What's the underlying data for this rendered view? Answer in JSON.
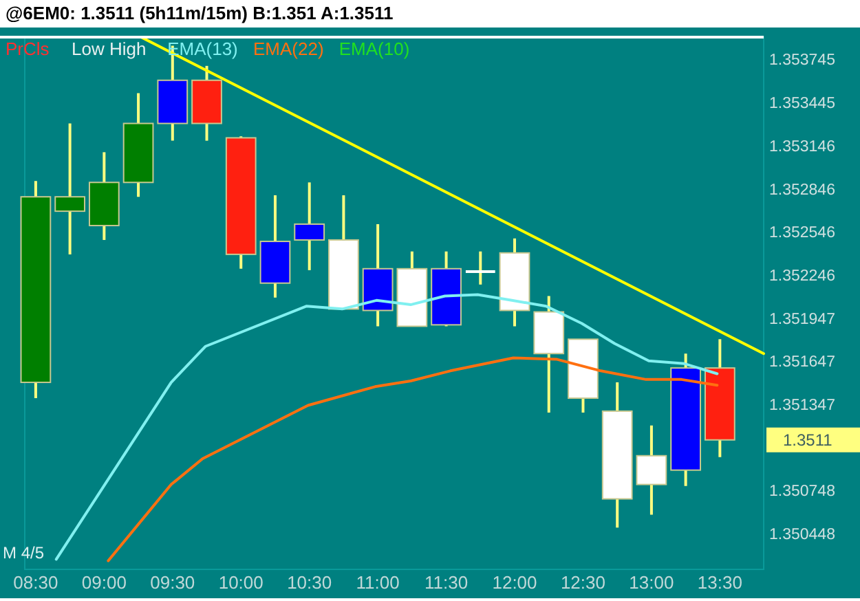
{
  "chart_data": {
    "type": "candlestick",
    "title": "@6EM0: 1.3511 (5h11m/15m)  B:1.351 A:1.3511",
    "x": [
      8.5,
      8.75,
      9,
      9.25,
      9.5,
      9.75,
      10,
      10.25,
      10.5,
      10.75,
      11,
      11.25,
      11.5,
      11.75,
      12,
      12.25,
      12.5,
      12.75,
      13,
      13.25,
      13.5
    ],
    "ohlc": [
      [
        1.3515,
        1.3529,
        1.35139,
        1.35279
      ],
      [
        1.35269,
        1.3533,
        1.35239,
        1.35279
      ],
      [
        1.35259,
        1.3531,
        1.35249,
        1.35289
      ],
      [
        1.35289,
        1.35351,
        1.35279,
        1.3533
      ],
      [
        1.3533,
        1.35384,
        1.35318,
        1.3536
      ],
      [
        1.3536,
        1.3537,
        1.35318,
        1.3533
      ],
      [
        1.3532,
        1.35321,
        1.35229,
        1.35239
      ],
      [
        1.35219,
        1.3528,
        1.35209,
        1.35248
      ],
      [
        1.35249,
        1.35289,
        1.35228,
        1.3526
      ],
      [
        1.35249,
        1.3528,
        1.35201,
        1.35201
      ],
      [
        1.352,
        1.3526,
        1.35189,
        1.35229
      ],
      [
        1.35229,
        1.35241,
        1.35189,
        1.35189
      ],
      [
        1.3519,
        1.35241,
        1.35189,
        1.35229
      ],
      [
        1.35227,
        1.35241,
        1.35218,
        1.35227
      ],
      [
        1.3524,
        1.3525,
        1.35189,
        1.352
      ],
      [
        1.35199,
        1.3521,
        1.35129,
        1.3517
      ],
      [
        1.3518,
        1.3518,
        1.35129,
        1.35139
      ],
      [
        1.3513,
        1.3515,
        1.35049,
        1.35069
      ],
      [
        1.35099,
        1.3512,
        1.35058,
        1.35079
      ],
      [
        1.35089,
        1.3517,
        1.35078,
        1.3516
      ],
      [
        1.3516,
        1.3518,
        1.35098,
        1.3511
      ]
    ],
    "colors": [
      "#007f00",
      "#007f00",
      "#007f00",
      "#007f00",
      "#0000ff",
      "#ff2010",
      "#ff2010",
      "#0000ff",
      "#0000ff",
      "#ffffff",
      "#0000ff",
      "#ffffff",
      "#0000ff",
      "#ffffff",
      "#ffffff",
      "#ffffff",
      "#ffffff",
      "#ffffff",
      "#ffffff",
      "#0000ff",
      "#ff2010"
    ],
    "series": [
      {
        "type": "line",
        "name": "EMA(13)",
        "color": "#80f0f0",
        "x": [
          8.65,
          9.49,
          9.74,
          10.48,
          10.74,
          10.99,
          11.24,
          11.49,
          11.73,
          11.98,
          12.23,
          12.49,
          12.73,
          12.98,
          13.24,
          13.48
        ],
        "values": [
          1.35027,
          1.3515,
          1.35175,
          1.35203,
          1.35201,
          1.35207,
          1.35204,
          1.3521,
          1.35211,
          1.35207,
          1.35203,
          1.35191,
          1.35177,
          1.35165,
          1.35163,
          1.35156
        ]
      },
      {
        "type": "line",
        "name": "EMA(22)",
        "color": "#ff7010",
        "x": [
          9.03,
          9.49,
          9.72,
          10.49,
          10.98,
          11.24,
          11.53,
          11.99,
          12.31,
          12.63,
          12.96,
          13.22,
          13.48
        ],
        "values": [
          1.35026,
          1.35079,
          1.35097,
          1.35134,
          1.35147,
          1.35151,
          1.35158,
          1.35167,
          1.35166,
          1.35158,
          1.35152,
          1.35152,
          1.35148
        ]
      },
      {
        "type": "line",
        "color": "#ffff00",
        "x": [
          9.27,
          13.82
        ],
        "values": [
          1.3539,
          1.3517
        ]
      }
    ],
    "annotations": [
      "PrCls",
      "Low High",
      "EMA(10)",
      "M 4/5",
      "1.3511"
    ],
    "legend": "top",
    "xlim": [
      8.42,
      13.82
    ],
    "ylim": [
      1.3502,
      1.3539
    ],
    "xticks": [
      {
        "value": 8.5,
        "label": "08:30"
      },
      {
        "value": 9,
        "label": "09:00"
      },
      {
        "value": 9.5,
        "label": "09:30"
      },
      {
        "value": 10,
        "label": "10:00"
      },
      {
        "value": 10.5,
        "label": "10:30"
      },
      {
        "value": 11,
        "label": "11:00"
      },
      {
        "value": 11.5,
        "label": "11:30"
      },
      {
        "value": 12,
        "label": "12:00"
      },
      {
        "value": 12.5,
        "label": "12:30"
      },
      {
        "value": 13,
        "label": "13:00"
      },
      {
        "value": 13.5,
        "label": "13:30"
      }
    ],
    "yticks": [
      1.353745,
      1.353445,
      1.353146,
      1.352846,
      1.352546,
      1.352246,
      1.351947,
      1.351647,
      1.351347,
      1.350748,
      1.350448
    ]
  }
}
